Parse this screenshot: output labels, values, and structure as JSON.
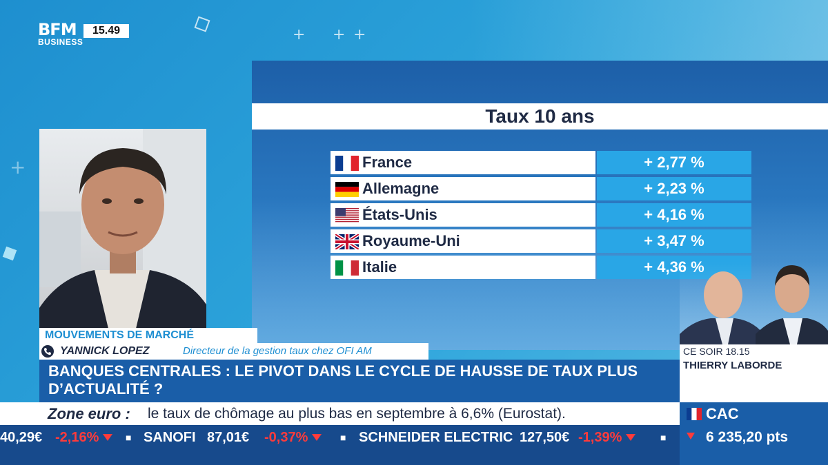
{
  "channel": {
    "logo_line1": "BFM",
    "logo_line2": "BUSINESS",
    "clock": "15.49"
  },
  "chart_panel": {
    "title": "Taux 10 ans",
    "rows": [
      {
        "country": "France",
        "flag": "flag-france-icon",
        "value": "+ 2,77 %"
      },
      {
        "country": "Allemagne",
        "flag": "flag-germany-icon",
        "value": "+ 2,23 %"
      },
      {
        "country": "États-Unis",
        "flag": "flag-usa-icon",
        "value": "+ 4,16 %"
      },
      {
        "country": "Royaume-Uni",
        "flag": "flag-uk-icon",
        "value": "+ 3,47 %"
      },
      {
        "country": "Italie",
        "flag": "flag-italy-icon",
        "value": "+ 4,36 %"
      }
    ]
  },
  "chart_data": {
    "type": "table",
    "title": "Taux 10 ans",
    "categories": [
      "France",
      "Allemagne",
      "États-Unis",
      "Royaume-Uni",
      "Italie"
    ],
    "values": [
      2.77,
      2.23,
      4.16,
      3.47,
      4.36
    ]
  },
  "lower_third": {
    "show_name": "MOUVEMENTS DE MARCHÉ",
    "guest_name": "YANNICK LOPEZ",
    "guest_role": "Directeur de la gestion taux chez OFI AM",
    "headline": "BANQUES CENTRALES : LE PIVOT DANS LE CYCLE DE HAUSSE DE TAUX PLUS D’ACTUALITÉ ?"
  },
  "promo": {
    "label": "CE SOIR 18.15",
    "host": "THIERRY LABORDE"
  },
  "news": {
    "label": "Zone euro :",
    "text": "le taux de chômage au plus bas en septembre à 6,6% (Eurostat)."
  },
  "ticker": [
    {
      "text": "40,29€",
      "color": "white"
    },
    {
      "text": "-2,16%",
      "color": "red"
    },
    {
      "text": "SANOFI",
      "color": "white"
    },
    {
      "text": "87,01€",
      "color": "white"
    },
    {
      "text": "-0,37%",
      "color": "red"
    },
    {
      "text": "SCHNEIDER ELECTRIC",
      "color": "white"
    },
    {
      "text": "127,50€",
      "color": "white"
    },
    {
      "text": "-1,39%",
      "color": "red"
    }
  ],
  "market": {
    "index": "CAC",
    "points": "6 235,20 pts"
  },
  "colors": {
    "accent_blue": "#29a6e6",
    "panel_dark": "#1d5fa8",
    "ticker_bg": "#174a8c",
    "negative": "#ff3b3b"
  }
}
